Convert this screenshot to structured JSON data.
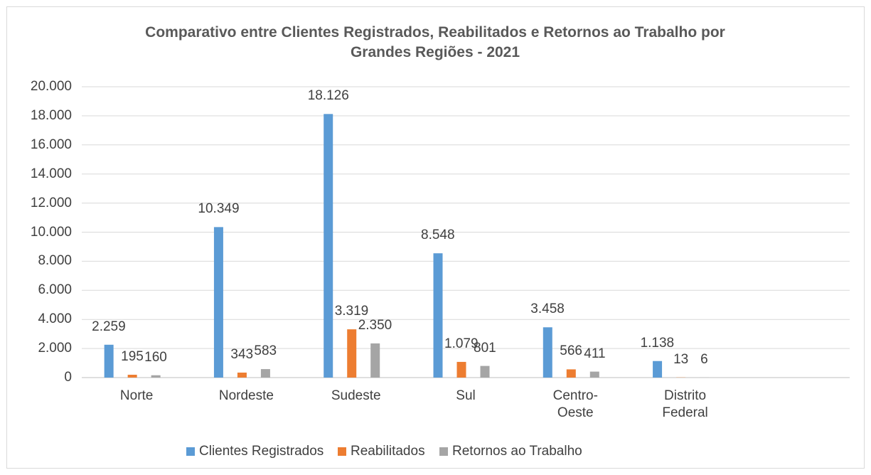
{
  "chart_data": {
    "type": "bar",
    "title": "Comparativo entre Clientes Registrados, Reabilitados e Retornos ao Trabalho por Grandes Regiões - 2021",
    "categories": [
      "Norte",
      "Nordeste",
      "Sudeste",
      "Sul",
      "Centro-Oeste",
      "Distrito Federal",
      null
    ],
    "series": [
      {
        "name": "Clientes Registrados",
        "color": "#5b9bd5",
        "values": [
          2259,
          10349,
          18126,
          8548,
          3458,
          1138,
          null
        ],
        "value_labels": [
          "2.259",
          "10.349",
          "18.126",
          "8.548",
          "3.458",
          "1.138",
          null
        ]
      },
      {
        "name": "Reabilitados",
        "color": "#ed7d31",
        "values": [
          195,
          343,
          3319,
          1079,
          566,
          13,
          null
        ],
        "value_labels": [
          "195",
          "343",
          "3.319",
          "1.079",
          "566",
          "13",
          null
        ]
      },
      {
        "name": "Retornos ao Trabalho",
        "color": "#a5a5a5",
        "values": [
          160,
          583,
          2350,
          801,
          411,
          6,
          null
        ],
        "value_labels": [
          "160",
          "583",
          "2.350",
          "801",
          "411",
          "6",
          null
        ]
      }
    ],
    "ylim": [
      0,
      20000
    ],
    "yticks": [
      0,
      {
        "value": 2000,
        "label": "2.000"
      },
      {
        "value": 4000,
        "label": "4.000"
      },
      {
        "value": 6000,
        "label": "6.000"
      },
      {
        "value": 8000,
        "label": "8.000"
      },
      {
        "value": 10000,
        "label": "10.000"
      },
      {
        "value": 12000,
        "label": "12.000"
      },
      {
        "value": 14000,
        "label": "14.000"
      },
      {
        "value": 16000,
        "label": "16.000"
      },
      {
        "value": 18000,
        "label": "18.000"
      },
      {
        "value": 20000,
        "label": "20.000"
      }
    ],
    "grid": true,
    "legend": "bottom"
  }
}
